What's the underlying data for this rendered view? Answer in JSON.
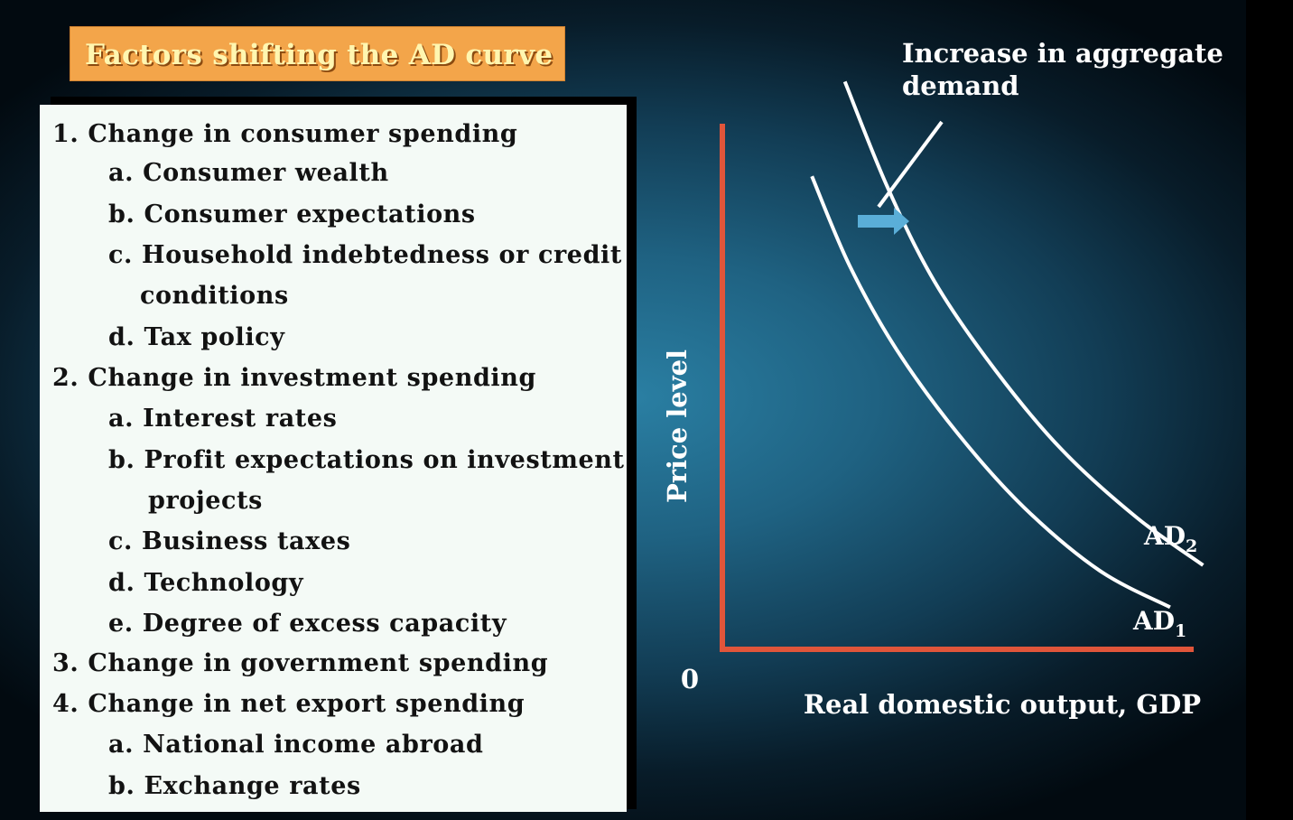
{
  "title": "Factors shifting the AD curve",
  "factors": [
    "1. Change in consumer spending",
    "a. Consumer wealth",
    "b. Consumer expectations",
    "c. Household indebtedness or credit",
    "conditions",
    "d. Tax policy",
    "2. Change in investment spending",
    "a. Interest rates",
    "b. Profit expectations on investment",
    "projects",
    "c. Business taxes",
    "d. Technology",
    "e. Degree of excess capacity",
    "3. Change in government spending",
    "4. Change in net export spending",
    "a. National income abroad",
    "b. Exchange rates"
  ],
  "colors": {
    "axis": "#e0553a",
    "curve": "#ffffff",
    "arrow": "#5aaed8",
    "title_bg": "#f3a54a",
    "title_text": "#fff6b0"
  },
  "chart_data": {
    "type": "line",
    "title": "",
    "annotation": {
      "line1": "Increase in aggregate",
      "line2": "demand"
    },
    "xlabel": "Real domestic output, GDP",
    "ylabel": "Price level",
    "origin_label": "0",
    "xlim": [
      0,
      100
    ],
    "ylim": [
      0,
      100
    ],
    "series": [
      {
        "name": "AD1",
        "label_main": "AD",
        "label_sub": "1",
        "x": [
          19,
          27,
          37,
          50,
          64,
          80,
          95
        ],
        "y": [
          90,
          73,
          57,
          41,
          27,
          15,
          8
        ]
      },
      {
        "name": "AD2",
        "label_main": "AD",
        "label_sub": "2",
        "x": [
          26,
          35,
          45,
          58,
          72,
          88,
          102
        ],
        "y": [
          108,
          88,
          70,
          53,
          38,
          25,
          16
        ]
      }
    ]
  }
}
